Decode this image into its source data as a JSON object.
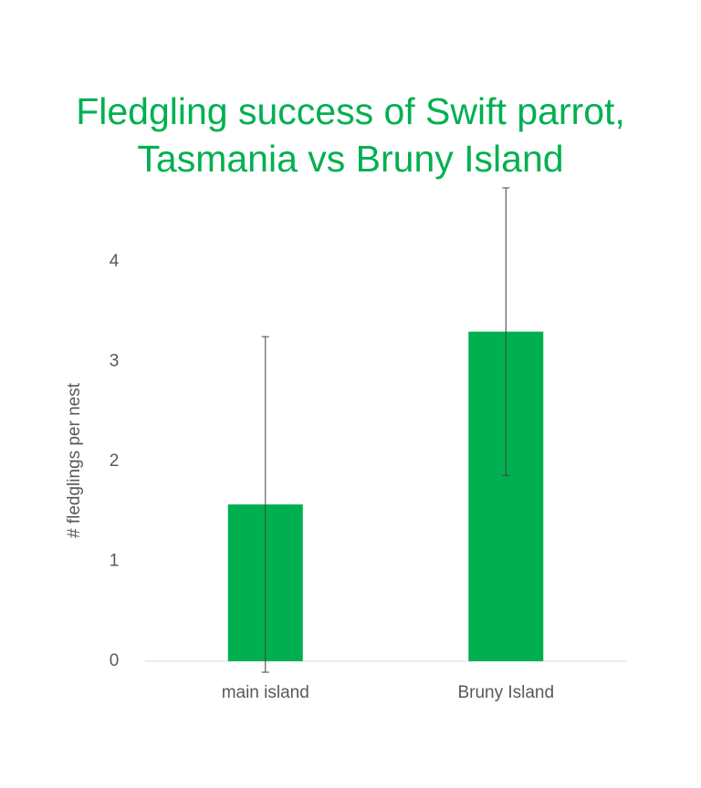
{
  "chart_data": {
    "type": "bar",
    "title": "Fledgling success of Swift parrot, Tasmania vs Bruny Island",
    "y_label": "# fledglings per nest",
    "categories": [
      "main island",
      "Bruny Island"
    ],
    "values": [
      1.57,
      3.3
    ],
    "errors": [
      1.68,
      1.44
    ],
    "color": "#00b050",
    "ylim": [
      0,
      5
    ],
    "yticks": [
      0,
      1,
      2,
      3,
      4
    ],
    "grid": false
  }
}
